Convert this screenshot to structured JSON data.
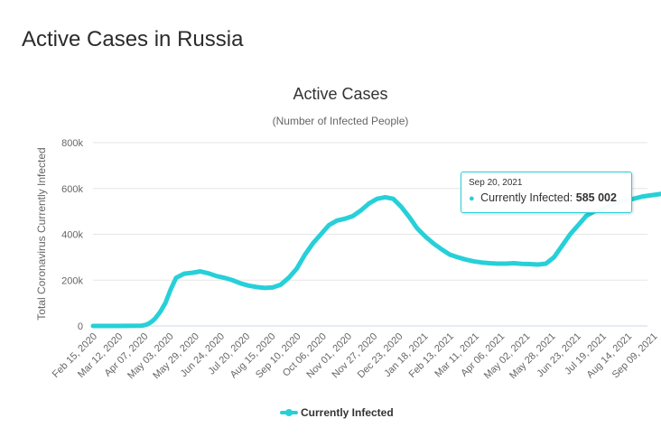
{
  "page": {
    "heading": "Active Cases in Russia"
  },
  "colors": {
    "series": "#27d0d8",
    "grid": "#e6e6e6",
    "axis_text": "#666666"
  },
  "tooltip": {
    "date": "Sep 20, 2021",
    "label": "Currently Infected:",
    "value": "585 002",
    "x_index": 218,
    "y": 585002
  },
  "chart_data": {
    "type": "line",
    "title": "Active Cases",
    "subtitle": "(Number of Infected People)",
    "xlabel": "",
    "ylabel": "Total Coronavirus Currently Infected",
    "ylim": [
      0,
      800000
    ],
    "yticks": [
      0,
      200000,
      400000,
      600000,
      800000
    ],
    "ytick_labels": [
      "0",
      "200k",
      "400k",
      "600k",
      "800k"
    ],
    "xtick_labels": [
      "Feb 15, 2020",
      "Mar 12, 2020",
      "Apr 07, 2020",
      "May 03, 2020",
      "May 29, 2020",
      "Jun 24, 2020",
      "Jul 20, 2020",
      "Aug 15, 2020",
      "Sep 10, 2020",
      "Oct 06, 2020",
      "Nov 01, 2020",
      "Nov 27, 2020",
      "Dec 23, 2020",
      "Jan 18, 2021",
      "Feb 13, 2021",
      "Mar 11, 2021",
      "Apr 06, 2021",
      "May 02, 2021",
      "May 28, 2021",
      "Jun 23, 2021",
      "Jul 19, 2021",
      "Aug 14, 2021",
      "Sep 09, 2021"
    ],
    "x_points_per_tick": 9.5,
    "grid": true,
    "legend": "bottom-center",
    "series": [
      {
        "name": "Currently Infected",
        "x_index": [
          0,
          9,
          18,
          19,
          20,
          21,
          22,
          23,
          25,
          27,
          29,
          31,
          34,
          37,
          40,
          43,
          46,
          49,
          52,
          55,
          58,
          61,
          64,
          67,
          70,
          73,
          76,
          79,
          82,
          85,
          88,
          91,
          94,
          97,
          100,
          103,
          106,
          109,
          112,
          115,
          118,
          121,
          124,
          127,
          130,
          133,
          136,
          139,
          142,
          145,
          148,
          151,
          154,
          157,
          160,
          163,
          166,
          169,
          172,
          175,
          178,
          181,
          184,
          187,
          190,
          193,
          196,
          199,
          202,
          205,
          208,
          211,
          214,
          217,
          218
        ],
        "values": [
          0,
          0,
          1000,
          3000,
          6000,
          12000,
          20000,
          30000,
          60000,
          100000,
          160000,
          210000,
          228000,
          232000,
          238000,
          230000,
          218000,
          210000,
          200000,
          186000,
          176000,
          170000,
          166000,
          168000,
          180000,
          210000,
          250000,
          310000,
          360000,
          400000,
          440000,
          460000,
          468000,
          480000,
          505000,
          535000,
          555000,
          562000,
          555000,
          520000,
          475000,
          425000,
          390000,
          360000,
          335000,
          312000,
          300000,
          290000,
          282000,
          277000,
          274000,
          272000,
          272000,
          274000,
          271000,
          270000,
          268000,
          272000,
          300000,
          350000,
          400000,
          440000,
          480000,
          500000,
          510000,
          530000,
          540000,
          548000,
          556000,
          565000,
          570000,
          575000,
          580000,
          582000,
          585002
        ]
      }
    ]
  }
}
